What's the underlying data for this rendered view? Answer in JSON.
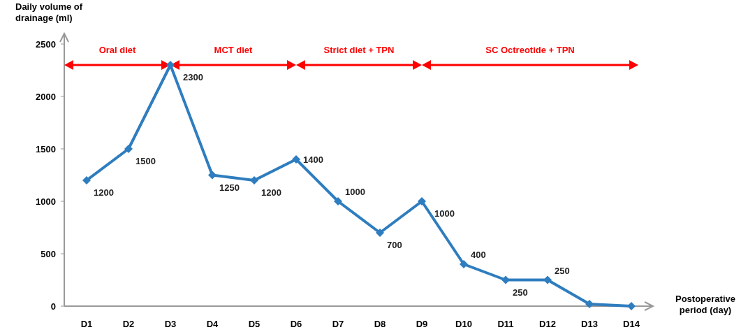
{
  "chart_data": {
    "type": "line",
    "xlabel": "Postoperative period (day)",
    "ylabel": "Daily volume of drainage (ml)",
    "categories": [
      "D1",
      "D2",
      "D3",
      "D4",
      "D5",
      "D6",
      "D7",
      "D8",
      "D9",
      "D10",
      "D11",
      "D12",
      "D13",
      "D14"
    ],
    "series": [
      {
        "color": "#2e7dbf",
        "values": [
          1200,
          1500,
          2300,
          1250,
          1200,
          1400,
          1000,
          700,
          1000,
          400,
          250,
          250,
          20,
          0
        ],
        "value_labels": [
          "1200",
          "1500",
          "2300",
          "1250",
          "1200",
          "1400",
          "1000",
          "700",
          "1000",
          "400",
          "250",
          "250",
          null,
          null
        ]
      }
    ],
    "ylim": [
      0,
      2600
    ],
    "yticks": [
      0,
      500,
      1000,
      1500,
      2000,
      2500
    ],
    "grid": false,
    "marker": "diamond",
    "line_style": "solid",
    "annotations": [
      "Oral diet",
      "MCT diet",
      "Strict diet + TPN",
      "SC Octreotide + TPN"
    ]
  }
}
